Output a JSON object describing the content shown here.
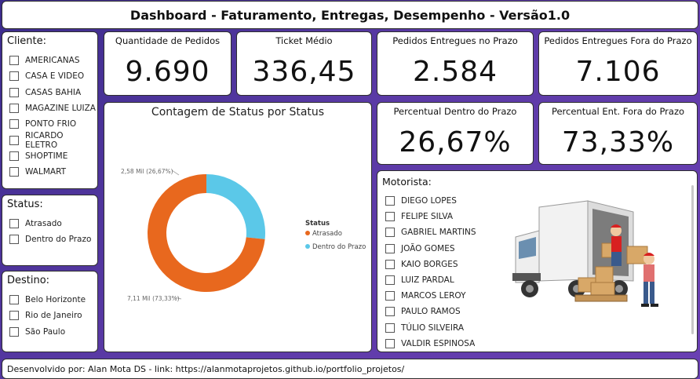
{
  "title": "Dashboard - Faturamento, Entregas, Desempenho - Versão1.0",
  "footer": "Desenvolvido por: Alan Mota DS - link: https://alanmotaprojetos.github.io/portfolio_projetos/",
  "filters": {
    "cliente": {
      "title": "Cliente:",
      "items": [
        "AMERICANAS",
        "CASA E VIDEO",
        "CASAS BAHIA",
        "MAGAZINE LUIZA",
        "PONTO FRIO",
        "RICARDO ELETRO",
        "SHOPTIME",
        "WALMART"
      ]
    },
    "status": {
      "title": "Status:",
      "items": [
        "Atrasado",
        "Dentro do Prazo"
      ]
    },
    "destino": {
      "title": "Destino:",
      "items": [
        "Belo Horizonte",
        "Rio de Janeiro",
        "São Paulo"
      ]
    }
  },
  "kpis": [
    {
      "label": "Quantidade de Pedidos",
      "value": "9.690"
    },
    {
      "label": "Ticket Médio",
      "value": "336,45"
    },
    {
      "label": "Pedidos Entregues no Prazo",
      "value": "2.584"
    },
    {
      "label": "Pedidos Entregues Fora do Prazo",
      "value": "7.106"
    },
    {
      "label": "Percentual Dentro do Prazo",
      "value": "26,67%"
    },
    {
      "label": "Percentual Ent. Fora do Prazo",
      "value": "73,33%"
    }
  ],
  "chart_data": {
    "type": "pie",
    "title": "Contagem de Status por Status",
    "legend_title": "Status",
    "legend_position": "right",
    "slices": [
      {
        "name": "Atrasado",
        "value": 7106,
        "label": "7,11 Mil (73,33%)",
        "color": "#e8681e"
      },
      {
        "name": "Dentro do Prazo",
        "value": 2584,
        "label": "2,58 Mil (26,67%)",
        "color": "#5bc8e8"
      }
    ]
  },
  "motorista": {
    "title": "Motorista:",
    "items": [
      "DIEGO LOPES",
      "FELIPE SILVA",
      "GABRIEL MARTINS",
      "JOÃO GOMES",
      "KAIO BORGES",
      "LUIZ PARDAL",
      "MARCOS LEROY",
      "PAULO RAMOS",
      "TÚLIO SILVEIRA",
      "VALDIR ESPINOSA"
    ]
  }
}
